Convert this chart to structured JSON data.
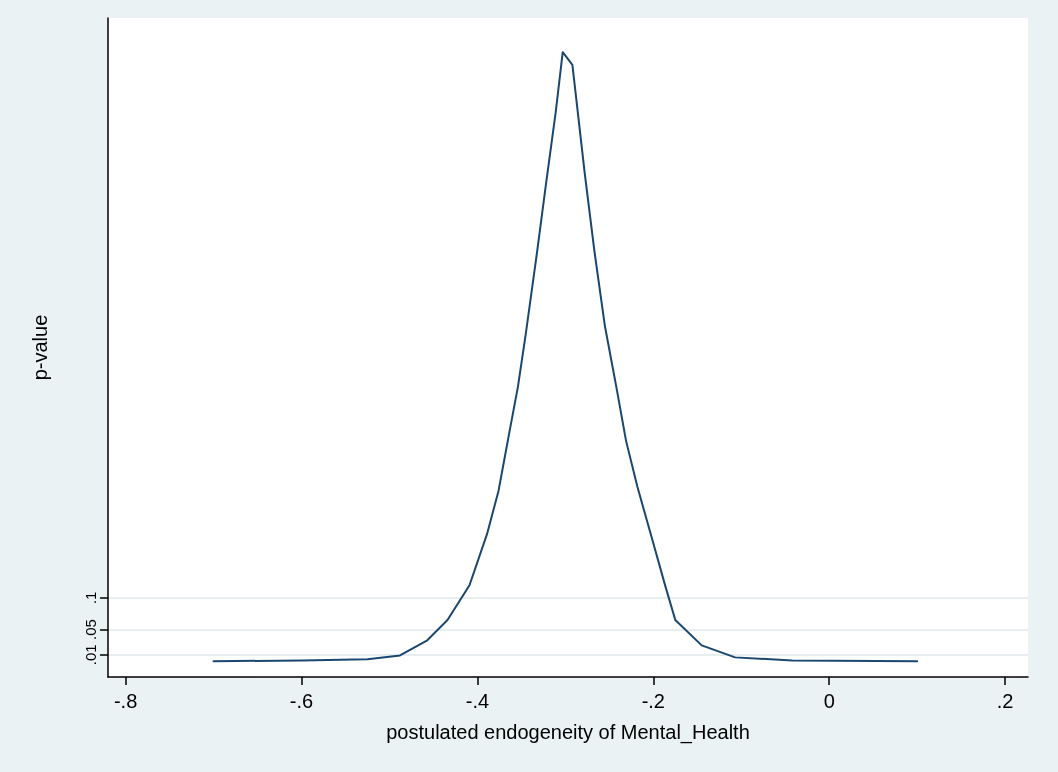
{
  "chart_data": {
    "type": "line",
    "xlabel": "postulated endogeneity of Mental_Health",
    "ylabel": "p-value",
    "x": [
      -0.7,
      -0.6,
      -0.525,
      -0.488,
      -0.457,
      -0.434,
      -0.409,
      -0.389,
      -0.376,
      -0.364,
      -0.354,
      -0.345,
      -0.332,
      -0.322,
      -0.311,
      -0.303,
      -0.292,
      -0.278,
      -0.267,
      -0.255,
      -0.242,
      -0.231,
      -0.218,
      -0.202,
      -0.186,
      -0.175,
      -0.145,
      -0.107,
      -0.042,
      0.1
    ],
    "series": [
      {
        "color": "#1a476f",
        "values": [
          0,
          0.001,
          0.003,
          0.009,
          0.033,
          0.065,
          0.12,
          0.201,
          0.269,
          0.359,
          0.433,
          0.517,
          0.648,
          0.754,
          0.867,
          0.962,
          0.942,
          0.771,
          0.648,
          0.529,
          0.433,
          0.348,
          0.275,
          0.196,
          0.117,
          0.065,
          0.025,
          0.006,
          0.001,
          0
        ]
      }
    ],
    "xlim": [
      -0.82,
      0.226
    ],
    "xticks": [
      {
        "value": -0.8,
        "label": "-.8"
      },
      {
        "value": -0.6,
        "label": "-.6"
      },
      {
        "value": -0.4,
        "label": "-.4"
      },
      {
        "value": -0.2,
        "label": "-.2"
      },
      0,
      {
        "value": 0.2,
        "label": ".2"
      }
    ],
    "ylim": [
      -0.025,
      1.016
    ],
    "yticks": [
      {
        "value": 0.01,
        "label": ".01"
      },
      {
        "value": 0.05,
        "label": ".05"
      },
      {
        "value": 0.1,
        "label": ".1"
      }
    ],
    "grid": "y",
    "marker": "none",
    "line_style": "solid"
  }
}
